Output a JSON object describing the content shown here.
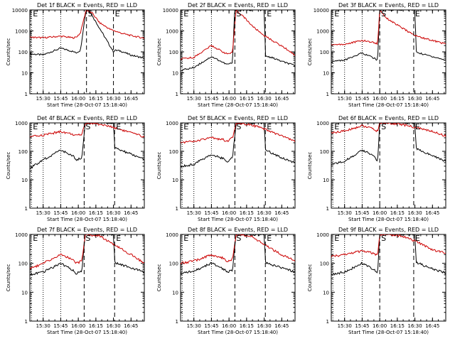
{
  "chart_data": [
    {
      "type": "line",
      "title": "Det 1f BLACK = Events, RED = LLD",
      "xlabel": "Start Time (28-Oct-07 15:18:40)",
      "ylabel": "Counts/sec",
      "ylim": [
        1,
        10000
      ],
      "xlim_hours": [
        15.311,
        16.939
      ],
      "x_ticks": [
        "15:30",
        "15:45",
        "16:00",
        "16:15",
        "16:30",
        "16:45"
      ],
      "y_ticks": [
        "1",
        "10",
        "100",
        "1000",
        "10000"
      ],
      "markers": [
        {
          "label": "E",
          "time": "15:20",
          "style": "dotted"
        },
        {
          "label": "S",
          "time": "16:07",
          "style": "dashed"
        },
        {
          "label": "E",
          "time": "16:30",
          "style": "dashed"
        }
      ],
      "series": [
        {
          "name": "Events",
          "color": "#000000",
          "x_hours": [
            15.311,
            15.5,
            15.75,
            15.92,
            15.97,
            16.03,
            16.11,
            16.15,
            16.5,
            16.52,
            16.6,
            16.75,
            16.939
          ],
          "values": [
            80,
            72,
            150,
            105,
            90,
            120,
            10000,
            10000,
            100,
            120,
            110,
            70,
            50
          ]
        },
        {
          "name": "LLD",
          "color": "#cc0000",
          "x_hours": [
            15.311,
            15.5,
            15.75,
            15.92,
            15.97,
            16.03,
            16.11,
            16.2,
            16.3,
            16.45,
            16.6,
            16.75,
            16.939
          ],
          "values": [
            500,
            470,
            560,
            470,
            500,
            800,
            10000,
            7000,
            2500,
            1200,
            800,
            600,
            450
          ]
        }
      ]
    },
    {
      "type": "line",
      "title": "Det 2f BLACK = Events, RED = LLD",
      "xlabel": "Start Time (28-Oct-07 15:18:40)",
      "ylabel": "Counts/sec",
      "ylim": [
        1,
        10000
      ],
      "xlim_hours": [
        15.311,
        16.939
      ],
      "x_ticks": [
        "15:30",
        "15:45",
        "16:00",
        "16:15",
        "16:30",
        "16:45"
      ],
      "y_ticks": [
        "1",
        "10",
        "100",
        "1000",
        "10000"
      ],
      "markers": [
        {
          "label": "E",
          "time": "15:20",
          "style": "dotted"
        },
        {
          "label": "S",
          "time": "16:05",
          "style": "dashed"
        },
        {
          "label": "E",
          "time": "16:31",
          "style": "dashed"
        }
      ],
      "series": [
        {
          "name": "Events",
          "color": "#000000",
          "x_hours": [
            15.311,
            15.5,
            15.75,
            15.97,
            16.05,
            16.08,
            16.5,
            16.52,
            16.6,
            16.75,
            16.939
          ],
          "values": [
            13,
            18,
            60,
            25,
            30,
            10000,
            10000,
            60,
            55,
            35,
            22
          ]
        },
        {
          "name": "LLD",
          "color": "#cc0000",
          "x_hours": [
            15.311,
            15.5,
            15.75,
            15.97,
            16.05,
            16.1,
            16.2,
            16.35,
            16.5,
            16.65,
            16.8,
            16.939
          ],
          "values": [
            45,
            55,
            200,
            80,
            90,
            10000,
            5000,
            1500,
            600,
            300,
            150,
            70
          ]
        }
      ]
    },
    {
      "type": "line",
      "title": "Det 3f BLACK = Events, RED = LLD",
      "xlabel": "Start Time (28-Oct-07 15:18:40)",
      "ylabel": "Counts/sec",
      "ylim": [
        1,
        10000
      ],
      "xlim_hours": [
        15.311,
        16.939
      ],
      "x_ticks": [
        "15:30",
        "15:45",
        "16:00",
        "16:15",
        "16:30",
        "16:45"
      ],
      "y_ticks": [
        "1",
        "10",
        "100",
        "1000",
        "10000"
      ],
      "markers": [
        {
          "label": "E",
          "time": "15:20",
          "style": "dotted"
        },
        {
          "label": "S",
          "time": "16:00",
          "style": "dashed"
        },
        {
          "label": "E",
          "time": "16:29",
          "style": "dashed"
        }
      ],
      "series": [
        {
          "name": "Events",
          "color": "#000000",
          "x_hours": [
            15.311,
            15.5,
            15.75,
            15.92,
            15.97,
            16.0,
            16.5,
            16.52,
            16.6,
            16.75,
            16.939
          ],
          "values": [
            35,
            40,
            90,
            50,
            40,
            10000,
            10000,
            100,
            80,
            60,
            40
          ]
        },
        {
          "name": "LLD",
          "color": "#cc0000",
          "x_hours": [
            15.311,
            15.5,
            15.75,
            15.92,
            15.97,
            16.0,
            16.1,
            16.3,
            16.5,
            16.75,
            16.939
          ],
          "values": [
            220,
            230,
            350,
            280,
            240,
            10000,
            4000,
            1500,
            600,
            350,
            240
          ]
        }
      ]
    },
    {
      "type": "line",
      "title": "Det 4f BLACK = Events, RED = LLD",
      "xlabel": "Start Time (28-Oct-07 15:18:40)",
      "ylabel": "Counts/sec",
      "ylim": [
        1,
        1000
      ],
      "xlim_hours": [
        15.311,
        16.939
      ],
      "x_ticks": [
        "15:30",
        "15:45",
        "16:00",
        "16:15",
        "16:30",
        "16:45"
      ],
      "y_ticks": [
        "1",
        "10",
        "100",
        "1000"
      ],
      "markers": [
        {
          "label": "E",
          "time": "15:20",
          "style": "dotted"
        },
        {
          "label": "S",
          "time": "16:05",
          "style": "dashed"
        },
        {
          "label": "E",
          "time": "16:31",
          "style": "dashed"
        }
      ],
      "series": [
        {
          "name": "Events",
          "color": "#000000",
          "x_hours": [
            15.311,
            15.5,
            15.75,
            15.92,
            15.97,
            16.05,
            16.1,
            16.5,
            16.52,
            16.6,
            16.75,
            16.939
          ],
          "values": [
            25,
            50,
            110,
            70,
            50,
            60,
            1000,
            1000,
            130,
            110,
            80,
            50
          ]
        },
        {
          "name": "LLD",
          "color": "#cc0000",
          "x_hours": [
            15.311,
            15.5,
            15.75,
            15.92,
            15.97,
            16.05,
            16.1,
            16.3,
            16.5,
            16.75,
            16.939
          ],
          "values": [
            320,
            370,
            500,
            400,
            350,
            400,
            1000,
            900,
            700,
            450,
            320
          ]
        }
      ]
    },
    {
      "type": "line",
      "title": "Det 5f BLACK = Events, RED = LLD",
      "xlabel": "Start Time (28-Oct-07 15:18:40)",
      "ylabel": "Counts/sec",
      "ylim": [
        1,
        1000
      ],
      "xlim_hours": [
        15.311,
        16.939
      ],
      "x_ticks": [
        "15:30",
        "15:45",
        "16:00",
        "16:15",
        "16:30",
        "16:45"
      ],
      "y_ticks": [
        "1",
        "10",
        "100",
        "1000"
      ],
      "markers": [
        {
          "label": "E",
          "time": "15:20",
          "style": "dotted"
        },
        {
          "label": "S",
          "time": "16:05",
          "style": "dashed"
        },
        {
          "label": "E",
          "time": "16:31",
          "style": "dashed"
        }
      ],
      "series": [
        {
          "name": "Events",
          "color": "#000000",
          "x_hours": [
            15.311,
            15.5,
            15.75,
            15.92,
            15.97,
            16.05,
            16.1,
            16.5,
            16.52,
            16.6,
            16.75,
            16.939
          ],
          "values": [
            30,
            35,
            80,
            55,
            40,
            60,
            1000,
            1000,
            110,
            90,
            60,
            40
          ]
        },
        {
          "name": "LLD",
          "color": "#cc0000",
          "x_hours": [
            15.311,
            15.5,
            15.75,
            15.92,
            15.97,
            16.05,
            16.1,
            16.3,
            16.5,
            16.75,
            16.939
          ],
          "values": [
            210,
            220,
            300,
            260,
            220,
            300,
            1000,
            900,
            600,
            350,
            220
          ]
        }
      ]
    },
    {
      "type": "line",
      "title": "Det 6f BLACK = Events, RED = LLD",
      "xlabel": "Start Time (28-Oct-07 15:18:40)",
      "ylabel": "Counts/sec",
      "ylim": [
        1,
        1000
      ],
      "xlim_hours": [
        15.311,
        16.939
      ],
      "x_ticks": [
        "15:30",
        "15:45",
        "16:00",
        "16:15",
        "16:30",
        "16:45"
      ],
      "y_ticks": [
        "1",
        "10",
        "100",
        "1000"
      ],
      "markers": [
        {
          "label": "E",
          "time": "15:20",
          "style": "dotted"
        },
        {
          "label": "S",
          "time": "16:00",
          "style": "dashed"
        },
        {
          "label": "E",
          "time": "16:29",
          "style": "dashed"
        }
      ],
      "series": [
        {
          "name": "Events",
          "color": "#000000",
          "x_hours": [
            15.311,
            15.5,
            15.75,
            15.92,
            15.97,
            16.0,
            16.5,
            16.52,
            16.6,
            16.75,
            16.939
          ],
          "values": [
            35,
            45,
            110,
            70,
            45,
            1000,
            1000,
            130,
            100,
            70,
            45
          ]
        },
        {
          "name": "LLD",
          "color": "#cc0000",
          "x_hours": [
            15.311,
            15.5,
            15.75,
            15.92,
            15.97,
            16.0,
            16.1,
            16.3,
            16.5,
            16.75,
            16.939
          ],
          "values": [
            450,
            520,
            800,
            600,
            500,
            1000,
            1000,
            900,
            700,
            500,
            350
          ]
        }
      ]
    },
    {
      "type": "line",
      "title": "Det 7f BLACK = Events, RED = LLD",
      "xlabel": "Start Time (28-Oct-07 15:18:40)",
      "ylabel": "Counts/sec",
      "ylim": [
        1,
        1000
      ],
      "xlim_hours": [
        15.311,
        16.939
      ],
      "x_ticks": [
        "15:30",
        "15:45",
        "16:00",
        "16:15",
        "16:30",
        "16:45"
      ],
      "y_ticks": [
        "1",
        "10",
        "100",
        "1000"
      ],
      "markers": [
        {
          "label": "E",
          "time": "15:20",
          "style": "dotted"
        },
        {
          "label": "S",
          "time": "16:05",
          "style": "dashed"
        },
        {
          "label": "E",
          "time": "16:31",
          "style": "dashed"
        }
      ],
      "series": [
        {
          "name": "Events",
          "color": "#000000",
          "x_hours": [
            15.311,
            15.5,
            15.75,
            15.92,
            15.97,
            16.05,
            16.1,
            16.5,
            16.52,
            16.6,
            16.75,
            16.939
          ],
          "values": [
            40,
            50,
            100,
            60,
            45,
            55,
            1000,
            1000,
            110,
            90,
            70,
            50
          ]
        },
        {
          "name": "LLD",
          "color": "#cc0000",
          "x_hours": [
            15.311,
            15.5,
            15.75,
            15.92,
            15.97,
            16.05,
            16.1,
            16.3,
            16.5,
            16.75,
            16.939
          ],
          "values": [
            65,
            100,
            200,
            140,
            100,
            120,
            1000,
            900,
            450,
            200,
            100
          ]
        }
      ]
    },
    {
      "type": "line",
      "title": "Det 8f BLACK = Events, RED = LLD",
      "xlabel": "Start Time (28-Oct-07 15:18:40)",
      "ylabel": "Counts/sec",
      "ylim": [
        1,
        1000
      ],
      "xlim_hours": [
        15.311,
        16.939
      ],
      "x_ticks": [
        "15:30",
        "15:45",
        "16:00",
        "16:15",
        "16:30",
        "16:45"
      ],
      "y_ticks": [
        "1",
        "10",
        "100",
        "1000"
      ],
      "markers": [
        {
          "label": "E",
          "time": "15:20",
          "style": "dotted"
        },
        {
          "label": "S",
          "time": "16:05",
          "style": "dashed"
        },
        {
          "label": "E",
          "time": "16:31",
          "style": "dashed"
        }
      ],
      "series": [
        {
          "name": "Events",
          "color": "#000000",
          "x_hours": [
            15.311,
            15.5,
            15.75,
            15.92,
            15.97,
            16.05,
            16.1,
            16.5,
            16.52,
            16.6,
            16.75,
            16.939
          ],
          "values": [
            45,
            55,
            100,
            65,
            50,
            60,
            1000,
            1000,
            110,
            90,
            70,
            50
          ]
        },
        {
          "name": "LLD",
          "color": "#cc0000",
          "x_hours": [
            15.311,
            15.5,
            15.75,
            15.92,
            15.97,
            16.05,
            16.1,
            16.3,
            16.5,
            16.75,
            16.939
          ],
          "values": [
            100,
            120,
            200,
            150,
            120,
            140,
            1000,
            900,
            450,
            200,
            120
          ]
        }
      ]
    },
    {
      "type": "line",
      "title": "Det 9f BLACK = Events, RED = LLD",
      "xlabel": "Start Time (28-Oct-07 15:18:40)",
      "ylabel": "Counts/sec",
      "ylim": [
        1,
        1000
      ],
      "xlim_hours": [
        15.311,
        16.939
      ],
      "x_ticks": [
        "15:30",
        "15:45",
        "16:00",
        "16:15",
        "16:30",
        "16:45"
      ],
      "y_ticks": [
        "1",
        "10",
        "100",
        "1000"
      ],
      "markers": [
        {
          "label": "E",
          "time": "15:20",
          "style": "dotted"
        },
        {
          "label": "S",
          "time": "16:00",
          "style": "dashed"
        },
        {
          "label": "E",
          "time": "16:29",
          "style": "dashed"
        }
      ],
      "series": [
        {
          "name": "Events",
          "color": "#000000",
          "x_hours": [
            15.311,
            15.5,
            15.75,
            15.92,
            15.97,
            16.0,
            16.5,
            16.52,
            16.6,
            16.75,
            16.939
          ],
          "values": [
            40,
            50,
            100,
            60,
            45,
            1000,
            1000,
            110,
            90,
            65,
            45
          ]
        },
        {
          "name": "LLD",
          "color": "#cc0000",
          "x_hours": [
            15.311,
            15.5,
            15.75,
            15.92,
            15.97,
            16.0,
            16.1,
            16.3,
            16.5,
            16.75,
            16.939
          ],
          "values": [
            170,
            200,
            270,
            220,
            180,
            1000,
            1000,
            900,
            600,
            300,
            220
          ]
        }
      ]
    }
  ]
}
